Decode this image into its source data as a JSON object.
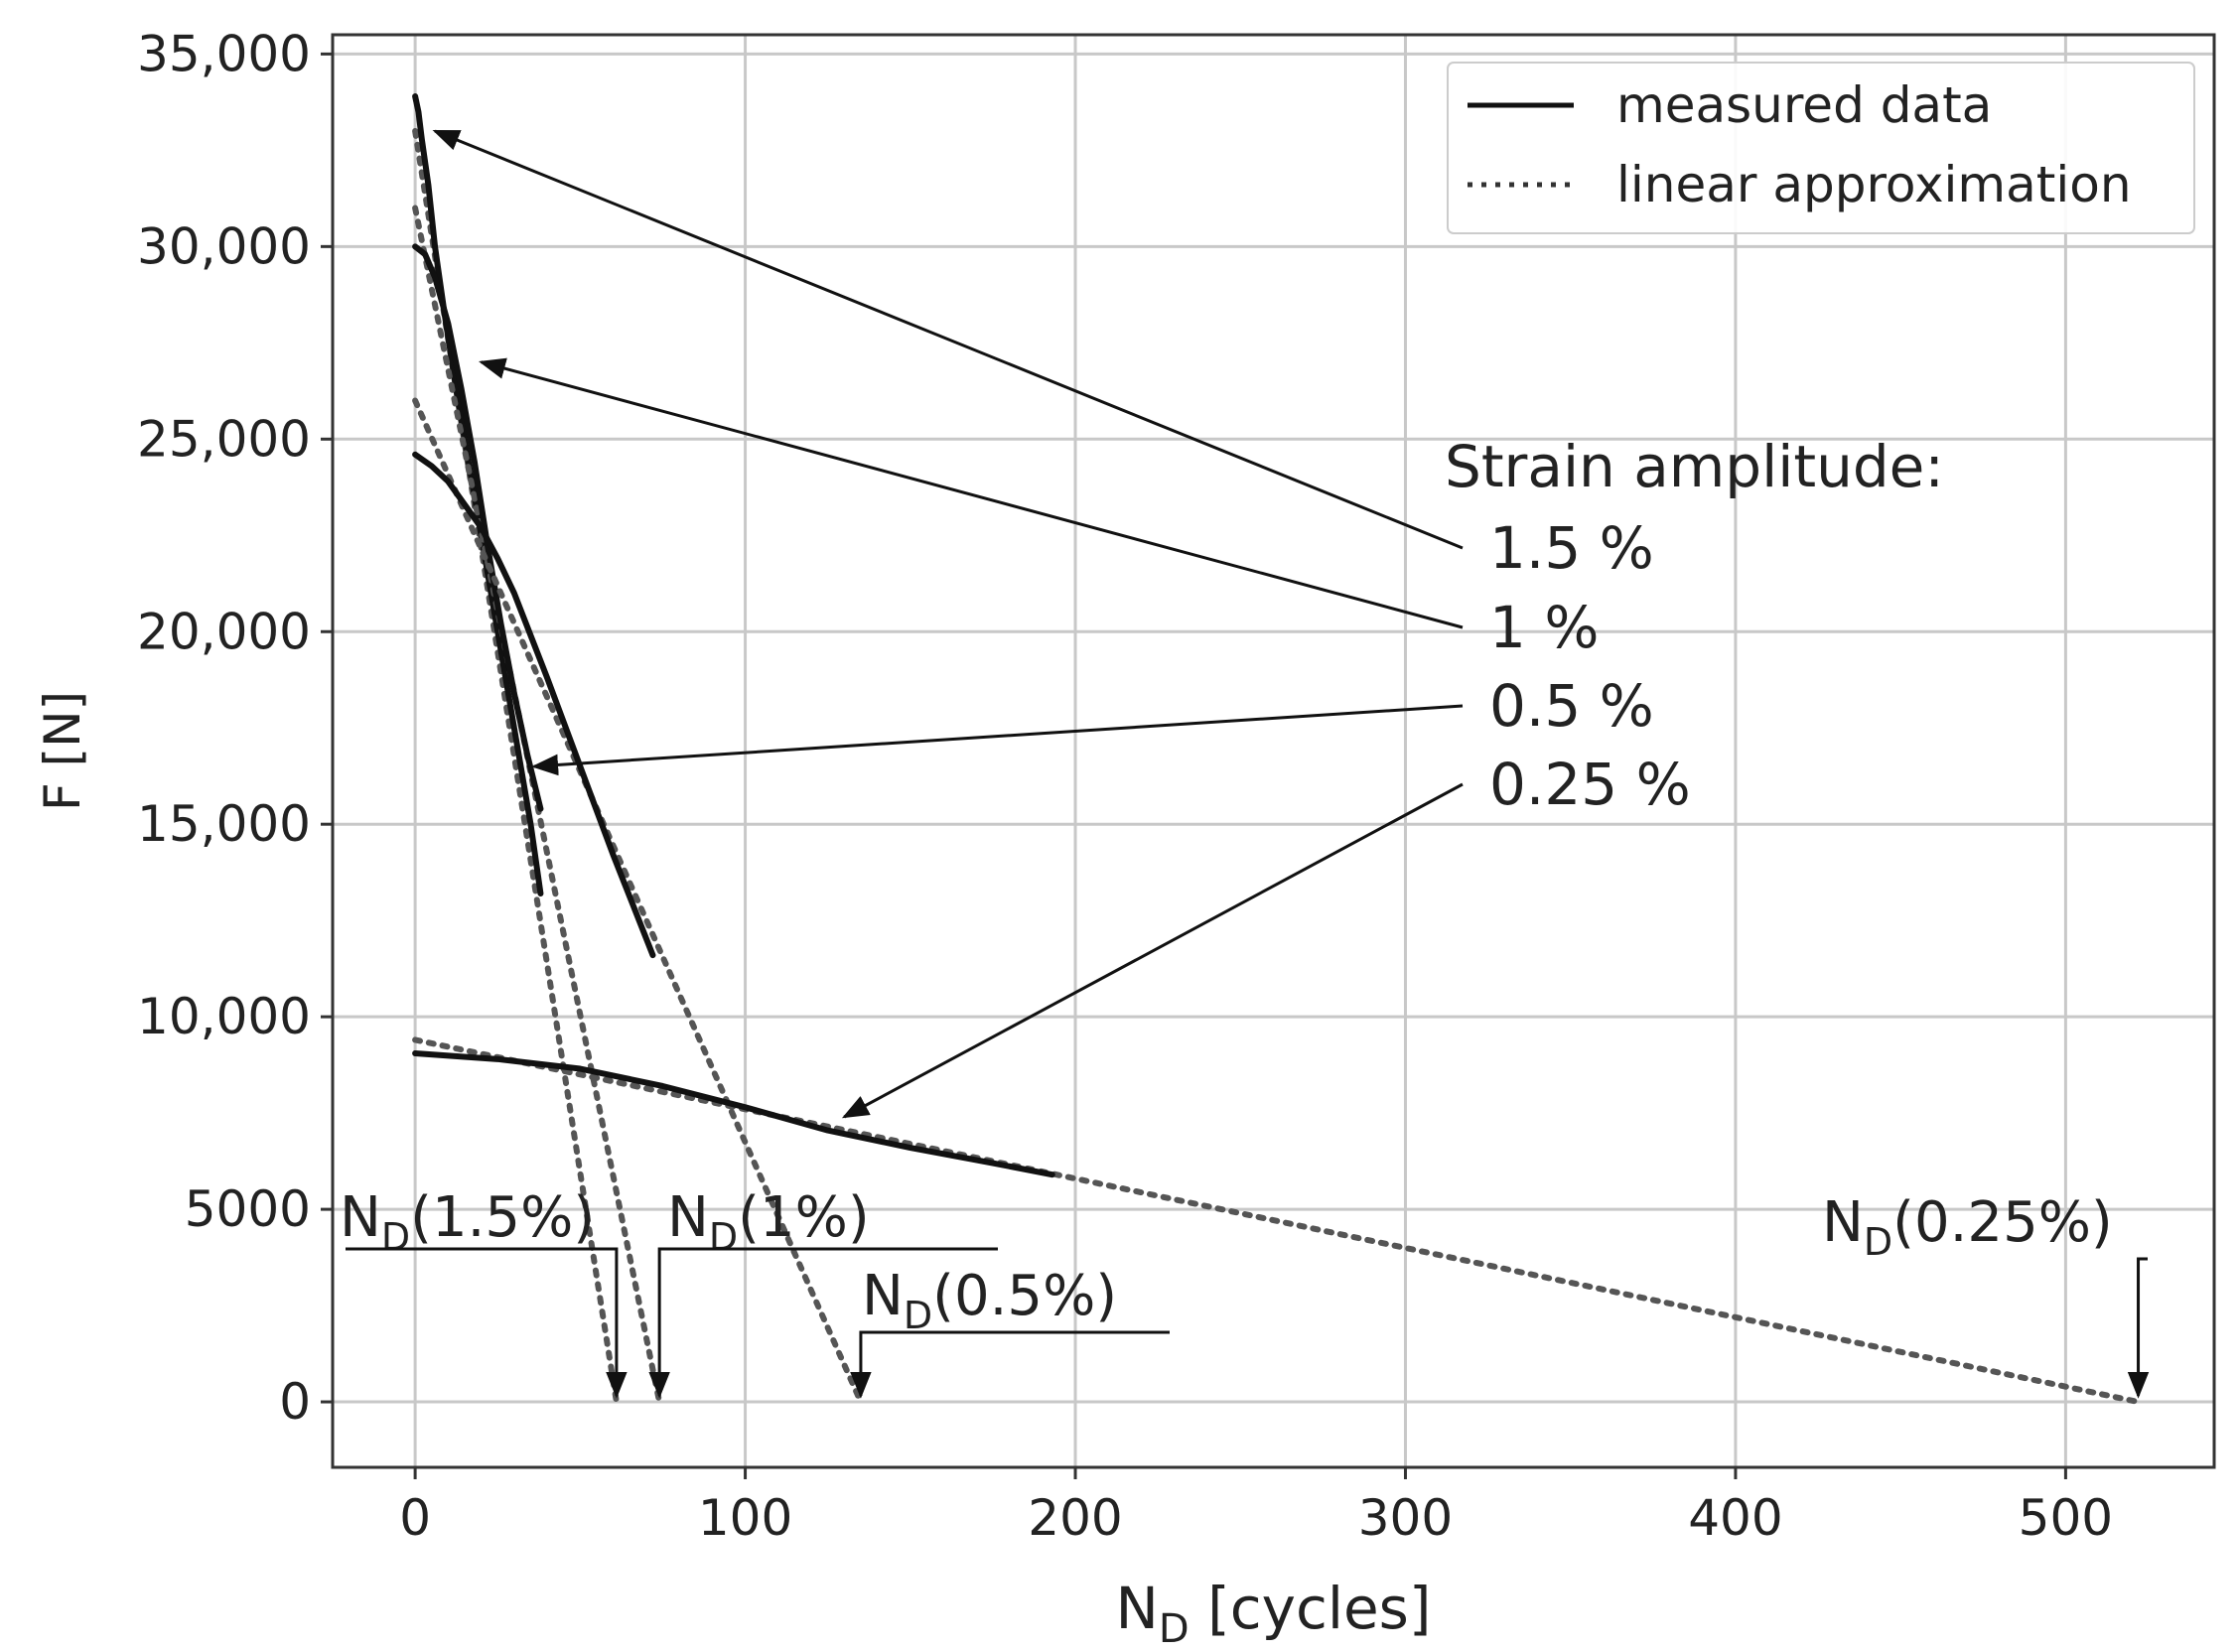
{
  "chart_data": {
    "type": "line",
    "xlabel": {
      "main": "N",
      "sub": "D",
      "rest": " [cycles]"
    },
    "ylabel": "F [N]",
    "xlim": [
      -25,
      545
    ],
    "ylim": [
      -1700,
      35500
    ],
    "grid": true,
    "x_ticks": [
      {
        "value": 0,
        "label": "0"
      },
      {
        "value": 100,
        "label": "100"
      },
      {
        "value": 200,
        "label": "200"
      },
      {
        "value": 300,
        "label": "300"
      },
      {
        "value": 400,
        "label": "400"
      },
      {
        "value": 500,
        "label": "500"
      }
    ],
    "y_ticks": [
      {
        "value": 0,
        "label": "0"
      },
      {
        "value": 5000,
        "label": "5000"
      },
      {
        "value": 10000,
        "label": "10,000"
      },
      {
        "value": 15000,
        "label": "15,000"
      },
      {
        "value": 20000,
        "label": "20,000"
      },
      {
        "value": 25000,
        "label": "25,000"
      },
      {
        "value": 30000,
        "label": "30,000"
      },
      {
        "value": 35000,
        "label": "35,000"
      }
    ],
    "legend": {
      "position": "top-right",
      "entries": [
        {
          "label": "measured data",
          "style": "solid"
        },
        {
          "label": "linear approximation",
          "style": "dotted"
        }
      ]
    },
    "series": [
      {
        "amplitude": "1.5 %",
        "measured": {
          "x": [
            0,
            1,
            2,
            4,
            6,
            9,
            13,
            18,
            24,
            30,
            35,
            38
          ],
          "y": [
            33900,
            33500,
            32800,
            31600,
            30000,
            28200,
            26000,
            23500,
            20500,
            17500,
            15000,
            13200
          ]
        },
        "linear": {
          "x": [
            0,
            61
          ],
          "y": [
            33000,
            0
          ]
        }
      },
      {
        "amplitude": "1 %",
        "measured": {
          "x": [
            0,
            3,
            6,
            10,
            14,
            18,
            22,
            26,
            30,
            34,
            38
          ],
          "y": [
            30000,
            29800,
            29200,
            28000,
            26300,
            24400,
            22200,
            20200,
            18400,
            16800,
            15400
          ]
        },
        "linear": {
          "x": [
            0,
            74
          ],
          "y": [
            31000,
            0
          ]
        }
      },
      {
        "amplitude": "0.5 %",
        "measured": {
          "x": [
            0,
            5,
            10,
            15,
            20,
            25,
            30,
            40,
            50,
            60,
            72
          ],
          "y": [
            24600,
            24300,
            23900,
            23300,
            22700,
            21900,
            21000,
            18800,
            16500,
            14200,
            11600
          ]
        },
        "linear": {
          "x": [
            0,
            135
          ],
          "y": [
            26000,
            0
          ]
        }
      },
      {
        "amplitude": "0.25 %",
        "measured": {
          "x": [
            0,
            25,
            50,
            75,
            100,
            125,
            150,
            175,
            193
          ],
          "y": [
            9050,
            8900,
            8650,
            8200,
            7650,
            7050,
            6600,
            6200,
            5900
          ]
        },
        "linear": {
          "x": [
            0,
            522
          ],
          "y": [
            9400,
            0
          ]
        }
      }
    ],
    "annotation_title": "Strain amplitude:",
    "amplitude_labels": [
      {
        "text": "1.5 %",
        "arrow_to_x": 6,
        "arrow_to_y": 33000
      },
      {
        "text": "1 %",
        "arrow_to_x": 20,
        "arrow_to_y": 27000
      },
      {
        "text": "0.5 %",
        "arrow_to_x": 36,
        "arrow_to_y": 16500
      },
      {
        "text": "0.25 %",
        "arrow_to_x": 130,
        "arrow_to_y": 7400
      }
    ],
    "nd_markers": [
      {
        "main": "N",
        "sub": "D",
        "rest": "(1.5%)",
        "x": 61
      },
      {
        "main": "N",
        "sub": "D",
        "rest": "(1%)",
        "x": 74
      },
      {
        "main": "N",
        "sub": "D",
        "rest": "(0.5%)",
        "x": 135
      },
      {
        "main": "N",
        "sub": "D",
        "rest": "(0.25%)",
        "x": 522
      }
    ]
  }
}
